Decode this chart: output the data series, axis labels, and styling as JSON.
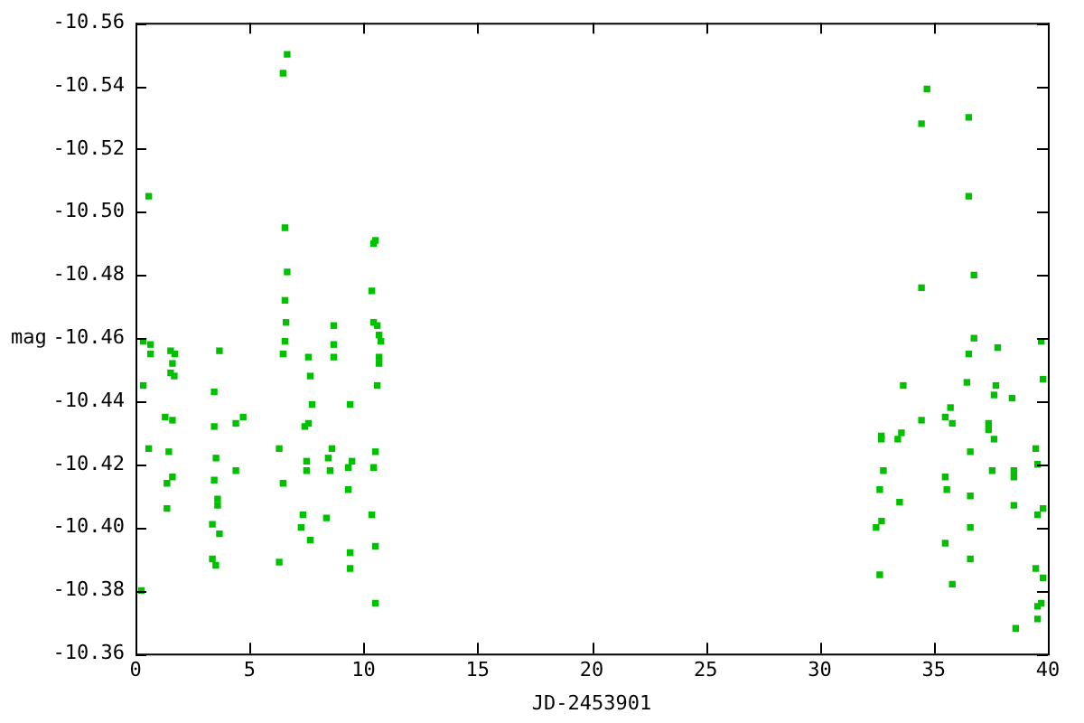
{
  "chart_data": {
    "type": "scatter",
    "xlabel": "JD-2453901",
    "ylabel": "mag",
    "marker": "square",
    "grid": false,
    "legend": false,
    "xlim": [
      0,
      40
    ],
    "xticks": [
      0,
      5,
      10,
      15,
      20,
      25,
      30,
      35,
      40
    ],
    "ylim": [
      -10.36,
      -10.56
    ],
    "yticks": [
      {
        "value": -10.56,
        "label": "-10.56"
      },
      {
        "value": -10.54,
        "label": "-10.54"
      },
      {
        "value": -10.52,
        "label": "-10.52"
      },
      {
        "value": -10.5,
        "label": "-10.50"
      },
      {
        "value": -10.48,
        "label": "-10.48"
      },
      {
        "value": -10.46,
        "label": "-10.46"
      },
      {
        "value": -10.44,
        "label": "-10.44"
      },
      {
        "value": -10.42,
        "label": "-10.42"
      },
      {
        "value": -10.4,
        "label": "-10.40"
      },
      {
        "value": -10.38,
        "label": "-10.38"
      },
      {
        "value": -10.36,
        "label": "-10.36"
      }
    ],
    "series": [
      {
        "color": "#00c000",
        "x": [
          6.65,
          6.47,
          0.58,
          6.55,
          6.65,
          6.55,
          6.6,
          6.55,
          6.47,
          0.34,
          0.66,
          0.66,
          1.54,
          1.72,
          3.68,
          1.62,
          1.54,
          1.7,
          0.34,
          3.45,
          1.3,
          1.62,
          3.45,
          4.4,
          4.72,
          0.58,
          1.46,
          3.53,
          1.62,
          1.38,
          3.45,
          4.4,
          3.6,
          3.6,
          1.38,
          3.37,
          3.68,
          3.37,
          3.52,
          0.26,
          6.3,
          6.47,
          6.3,
          10.52,
          10.44,
          10.36,
          10.44,
          10.6,
          10.68,
          10.76,
          10.68,
          10.68,
          10.6,
          10.52,
          10.44,
          10.36,
          10.52,
          10.52,
          8.69,
          8.69,
          8.69,
          7.58,
          7.66,
          7.74,
          9.41,
          7.58,
          7.42,
          8.61,
          8.45,
          7.5,
          7.5,
          9.49,
          9.33,
          8.53,
          9.33,
          7.34,
          8.37,
          7.26,
          7.66,
          9.41,
          9.41,
          34.7,
          34.46,
          34.46,
          33.66,
          35.73,
          35.5,
          35.81,
          34.46,
          33.58,
          33.42,
          32.7,
          32.7,
          32.79,
          32.63,
          33.5,
          35.5,
          35.57,
          32.71,
          32.47,
          35.5,
          32.63,
          35.81,
          36.53,
          36.53,
          36.76,
          36.76,
          36.53,
          37.8,
          39.71,
          36.45,
          37.72,
          37.64,
          38.43,
          39.79,
          37.4,
          37.4,
          37.64,
          36.6,
          39.47,
          39.55,
          37.56,
          38.51,
          38.51,
          36.6,
          38.51,
          39.79,
          39.55,
          36.6,
          36.6,
          39.47,
          39.79,
          39.71,
          39.55,
          39.55,
          38.59
        ],
        "values": [
          -10.55,
          -10.544,
          -10.505,
          -10.495,
          -10.481,
          -10.472,
          -10.465,
          -10.459,
          -10.455,
          -10.459,
          -10.458,
          -10.455,
          -10.456,
          -10.455,
          -10.456,
          -10.452,
          -10.449,
          -10.448,
          -10.445,
          -10.443,
          -10.435,
          -10.434,
          -10.432,
          -10.433,
          -10.435,
          -10.425,
          -10.424,
          -10.422,
          -10.416,
          -10.414,
          -10.415,
          -10.418,
          -10.409,
          -10.407,
          -10.406,
          -10.401,
          -10.398,
          -10.39,
          -10.388,
          -10.38,
          -10.425,
          -10.414,
          -10.389,
          -10.491,
          -10.49,
          -10.475,
          -10.465,
          -10.464,
          -10.461,
          -10.459,
          -10.454,
          -10.452,
          -10.445,
          -10.424,
          -10.419,
          -10.404,
          -10.394,
          -10.376,
          -10.464,
          -10.458,
          -10.454,
          -10.454,
          -10.448,
          -10.439,
          -10.439,
          -10.433,
          -10.432,
          -10.425,
          -10.422,
          -10.421,
          -10.418,
          -10.421,
          -10.419,
          -10.418,
          -10.412,
          -10.404,
          -10.403,
          -10.4,
          -10.396,
          -10.392,
          -10.387,
          -10.539,
          -10.528,
          -10.476,
          -10.445,
          -10.438,
          -10.435,
          -10.433,
          -10.434,
          -10.43,
          -10.428,
          -10.429,
          -10.428,
          -10.418,
          -10.412,
          -10.408,
          -10.416,
          -10.412,
          -10.402,
          -10.4,
          -10.395,
          -10.385,
          -10.382,
          -10.53,
          -10.505,
          -10.48,
          -10.46,
          -10.455,
          -10.457,
          -10.459,
          -10.446,
          -10.445,
          -10.442,
          -10.441,
          -10.447,
          -10.433,
          -10.431,
          -10.428,
          -10.424,
          -10.425,
          -10.42,
          -10.418,
          -10.418,
          -10.416,
          -10.41,
          -10.407,
          -10.406,
          -10.404,
          -10.4,
          -10.39,
          -10.387,
          -10.384,
          -10.376,
          -10.375,
          -10.371,
          -10.368
        ]
      }
    ]
  }
}
